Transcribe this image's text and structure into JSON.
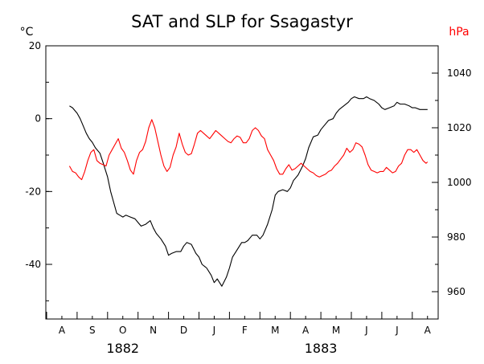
{
  "chart_data": {
    "type": "line",
    "title": "SAT and SLP for Ssagastyr",
    "left_axis": {
      "unit": "°C",
      "ylim": [
        -55,
        20
      ],
      "ticks": [
        20,
        0,
        -20,
        -40
      ],
      "minor_step": 10
    },
    "right_axis": {
      "unit": "hPa",
      "ylim": [
        950,
        1050
      ],
      "ticks": [
        1040,
        1020,
        1000,
        980,
        960
      ],
      "minor_step": 10,
      "color": "#ff0000"
    },
    "x_axis": {
      "month_labels": [
        "A",
        "S",
        "O",
        "N",
        "D",
        "J",
        "F",
        "M",
        "A",
        "M",
        "J",
        "J",
        "A"
      ],
      "year_labels": [
        {
          "text": "1882",
          "month_index": 2
        },
        {
          "text": "1883",
          "month_index": 8.5
        }
      ]
    },
    "grid": false,
    "series": [
      {
        "id": "sat",
        "axis": "left",
        "color": "#000000",
        "x": [
          0.75,
          0.85,
          1.0,
          1.1,
          1.2,
          1.3,
          1.4,
          1.5,
          1.6,
          1.75,
          1.85,
          2.0,
          2.1,
          2.2,
          2.3,
          2.4,
          2.5,
          2.6,
          2.75,
          2.9,
          3.0,
          3.1,
          3.25,
          3.4,
          3.5,
          3.6,
          3.75,
          3.9,
          4.0,
          4.1,
          4.25,
          4.4,
          4.5,
          4.6,
          4.75,
          4.9,
          5.0,
          5.1,
          5.25,
          5.4,
          5.5,
          5.6,
          5.75,
          5.9,
          6.0,
          6.1,
          6.25,
          6.4,
          6.5,
          6.6,
          6.75,
          6.9,
          7.0,
          7.1,
          7.25,
          7.4,
          7.5,
          7.6,
          7.75,
          7.9,
          8.0,
          8.1,
          8.25,
          8.4,
          8.5,
          8.6,
          8.75,
          8.9,
          9.0,
          9.1,
          9.25,
          9.4,
          9.5,
          9.6,
          9.75,
          9.9,
          10.0,
          10.1,
          10.25,
          10.4,
          10.5,
          10.6,
          10.75,
          10.9,
          11.0,
          11.1,
          11.25,
          11.4,
          11.5,
          11.6,
          11.75,
          11.9,
          12.0,
          12.1,
          12.25,
          12.4,
          12.5
        ],
        "y": [
          3.5,
          3,
          1.5,
          0,
          -2,
          -4,
          -5.5,
          -6.5,
          -8,
          -9.5,
          -12,
          -16,
          -20,
          -23,
          -26,
          -26.5,
          -27,
          -26.5,
          -27,
          -27.5,
          -28.5,
          -29.5,
          -29,
          -28,
          -30,
          -31.5,
          -33,
          -35,
          -37.5,
          -37,
          -36.5,
          -36.5,
          -35,
          -34,
          -34.5,
          -37,
          -38,
          -40,
          -41,
          -43,
          -45,
          -44,
          -46,
          -43.5,
          -41,
          -38,
          -36,
          -34,
          -34,
          -33.5,
          -32,
          -32,
          -33,
          -32,
          -29,
          -25,
          -21,
          -20,
          -19.5,
          -20,
          -19,
          -17,
          -15.5,
          -13,
          -11,
          -8,
          -5,
          -4.5,
          -3,
          -2,
          -0.5,
          0,
          1.5,
          2.5,
          3.5,
          4.5,
          5.5,
          6,
          5.5,
          5.5,
          6,
          5.5,
          5,
          4,
          3,
          2.5,
          3,
          3.5,
          4.5,
          4,
          4,
          3.5,
          3,
          3,
          2.5,
          2.5,
          2.5
        ]
      },
      {
        "id": "slp",
        "axis": "right",
        "color": "#ff0000",
        "x": [
          0.75,
          0.85,
          0.95,
          1.05,
          1.15,
          1.25,
          1.35,
          1.45,
          1.55,
          1.65,
          1.75,
          1.85,
          1.95,
          2.05,
          2.15,
          2.25,
          2.35,
          2.45,
          2.55,
          2.65,
          2.75,
          2.85,
          2.95,
          3.05,
          3.15,
          3.25,
          3.35,
          3.45,
          3.55,
          3.65,
          3.75,
          3.85,
          3.95,
          4.05,
          4.15,
          4.25,
          4.35,
          4.45,
          4.55,
          4.65,
          4.75,
          4.85,
          4.95,
          5.05,
          5.15,
          5.25,
          5.35,
          5.45,
          5.55,
          5.65,
          5.75,
          5.85,
          5.95,
          6.05,
          6.15,
          6.25,
          6.35,
          6.45,
          6.55,
          6.65,
          6.75,
          6.85,
          6.95,
          7.05,
          7.15,
          7.25,
          7.35,
          7.45,
          7.55,
          7.65,
          7.75,
          7.85,
          7.95,
          8.05,
          8.15,
          8.25,
          8.35,
          8.45,
          8.55,
          8.65,
          8.75,
          8.85,
          8.95,
          9.05,
          9.15,
          9.25,
          9.35,
          9.45,
          9.55,
          9.65,
          9.75,
          9.85,
          9.95,
          10.05,
          10.15,
          10.25,
          10.35,
          10.45,
          10.55,
          10.65,
          10.75,
          10.85,
          10.95,
          11.05,
          11.15,
          11.25,
          11.35,
          11.45,
          11.55,
          11.65,
          11.75,
          11.85,
          11.95,
          12.05,
          12.15,
          12.25,
          12.35,
          12.45,
          12.5
        ],
        "y": [
          1006,
          1004,
          1003.5,
          1002,
          1001,
          1004,
          1008,
          1011,
          1012,
          1008,
          1007,
          1006.5,
          1006,
          1010,
          1012,
          1014,
          1016,
          1012.5,
          1011,
          1008,
          1004.5,
          1003,
          1008,
          1011,
          1012,
          1015,
          1020,
          1023,
          1020,
          1015,
          1010,
          1006,
          1004,
          1005.5,
          1010,
          1013,
          1018,
          1014,
          1011,
          1010,
          1010.5,
          1014,
          1018,
          1019,
          1018,
          1017,
          1016,
          1017.5,
          1019,
          1018,
          1017,
          1016,
          1015,
          1014.5,
          1016,
          1017,
          1016.5,
          1014.5,
          1014.5,
          1016,
          1019,
          1020,
          1019,
          1017,
          1016,
          1012,
          1010,
          1008,
          1005,
          1003,
          1003,
          1005,
          1006.5,
          1004.5,
          1005,
          1006,
          1007,
          1006,
          1005,
          1004,
          1003.5,
          1002.5,
          1002,
          1002.5,
          1003,
          1004,
          1004.5,
          1006,
          1007,
          1008.5,
          1010,
          1012.5,
          1011,
          1012,
          1014.5,
          1014,
          1013,
          1010,
          1006.5,
          1004.5,
          1004,
          1003.5,
          1004,
          1004,
          1005.5,
          1004.5,
          1003.5,
          1004,
          1006,
          1007,
          1010,
          1012,
          1012,
          1011,
          1012,
          1010,
          1008,
          1007,
          1007.5
        ]
      }
    ]
  }
}
